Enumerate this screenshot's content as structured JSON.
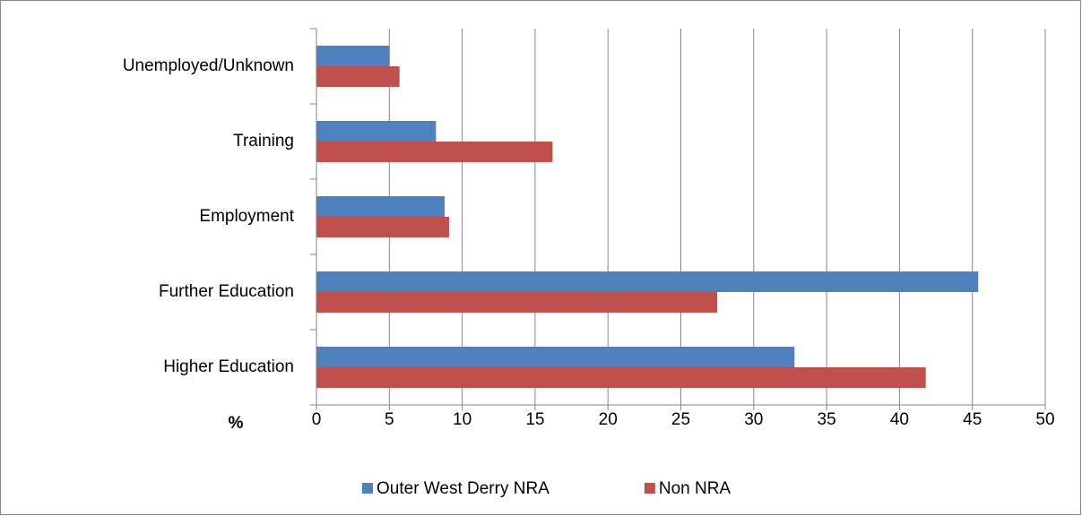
{
  "chart_data": {
    "type": "hbar",
    "x_label": "%",
    "categories": [
      "Unemployed/Unknown",
      "Training",
      "Employment",
      "Further Education",
      "Higher Education"
    ],
    "series": [
      {
        "name": "Outer West Derry NRA",
        "color": "#4f81bd",
        "values": [
          5.0,
          8.2,
          8.8,
          45.4,
          32.8
        ]
      },
      {
        "name": "Non NRA",
        "color": "#c0504d",
        "values": [
          5.7,
          16.2,
          9.1,
          27.5,
          41.8
        ]
      }
    ],
    "xlim": [
      0,
      50
    ],
    "xticks": [
      0,
      5,
      10,
      15,
      20,
      25,
      30,
      35,
      40,
      45,
      50
    ],
    "grid": true,
    "legend": "bottom"
  }
}
